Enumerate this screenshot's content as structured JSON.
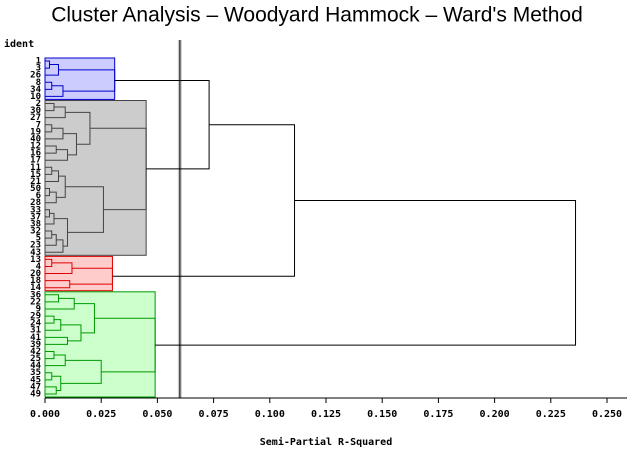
{
  "chart_data": {
    "type": "dendrogram",
    "title": "Cluster Analysis – Woodyard Hammock – Ward's Method",
    "y_label": "ident",
    "x_label": "Semi-Partial R-Squared",
    "xlim": [
      0,
      0.25
    ],
    "xticks": [
      {
        "value": 0,
        "label": "0.000"
      },
      {
        "value": 0.025,
        "label": "0.025"
      },
      {
        "value": 0.05,
        "label": "0.050"
      },
      {
        "value": 0.075,
        "label": "0.075"
      },
      {
        "value": 0.1,
        "label": "0.100"
      },
      {
        "value": 0.125,
        "label": "0.125"
      },
      {
        "value": 0.15,
        "label": "0.150"
      },
      {
        "value": 0.175,
        "label": "0.175"
      },
      {
        "value": 0.2,
        "label": "0.200"
      },
      {
        "value": 0.225,
        "label": "0.225"
      },
      {
        "value": 0.25,
        "label": "0.250"
      }
    ],
    "cutoff": 0.06,
    "leaves": [
      "1",
      "3",
      "26",
      "8",
      "34",
      "10",
      "2",
      "30",
      "27",
      "7",
      "19",
      "40",
      "12",
      "16",
      "17",
      "11",
      "15",
      "21",
      "50",
      "6",
      "28",
      "33",
      "37",
      "38",
      "32",
      "5",
      "23",
      "43",
      "13",
      "4",
      "20",
      "18",
      "14",
      "36",
      "22",
      "9",
      "29",
      "24",
      "31",
      "41",
      "39",
      "42",
      "25",
      "44",
      "35",
      "45",
      "47",
      "49"
    ],
    "merges": [
      {
        "left": 0,
        "right": 1,
        "height": 0.002
      },
      {
        "left": 48,
        "right": 2,
        "height": 0.006
      },
      {
        "left": 3,
        "right": 4,
        "height": 0.003
      },
      {
        "left": 50,
        "right": 5,
        "height": 0.008
      },
      {
        "left": 49,
        "right": 51,
        "height": 0.031
      },
      {
        "left": 6,
        "right": 7,
        "height": 0.004
      },
      {
        "left": 53,
        "right": 8,
        "height": 0.009
      },
      {
        "left": 9,
        "right": 10,
        "height": 0.003
      },
      {
        "left": 55,
        "right": 11,
        "height": 0.008
      },
      {
        "left": 12,
        "right": 13,
        "height": 0.005
      },
      {
        "left": 57,
        "right": 14,
        "height": 0.01
      },
      {
        "left": 56,
        "right": 58,
        "height": 0.014
      },
      {
        "left": 54,
        "right": 59,
        "height": 0.02
      },
      {
        "left": 15,
        "right": 16,
        "height": 0.003
      },
      {
        "left": 61,
        "right": 17,
        "height": 0.006
      },
      {
        "left": 18,
        "right": 19,
        "height": 0.002
      },
      {
        "left": 63,
        "right": 20,
        "height": 0.005
      },
      {
        "left": 62,
        "right": 64,
        "height": 0.009
      },
      {
        "left": 21,
        "right": 22,
        "height": 0.002
      },
      {
        "left": 66,
        "right": 23,
        "height": 0.004
      },
      {
        "left": 24,
        "right": 25,
        "height": 0.003
      },
      {
        "left": 68,
        "right": 26,
        "height": 0.005
      },
      {
        "left": 69,
        "right": 27,
        "height": 0.008
      },
      {
        "left": 67,
        "right": 70,
        "height": 0.01
      },
      {
        "left": 65,
        "right": 71,
        "height": 0.026
      },
      {
        "left": 60,
        "right": 72,
        "height": 0.045
      },
      {
        "left": 28,
        "right": 29,
        "height": 0.003
      },
      {
        "left": 74,
        "right": 30,
        "height": 0.012
      },
      {
        "left": 31,
        "right": 32,
        "height": 0.011
      },
      {
        "left": 75,
        "right": 76,
        "height": 0.03
      },
      {
        "left": 33,
        "right": 34,
        "height": 0.006
      },
      {
        "left": 78,
        "right": 35,
        "height": 0.013
      },
      {
        "left": 36,
        "right": 37,
        "height": 0.004
      },
      {
        "left": 80,
        "right": 38,
        "height": 0.007
      },
      {
        "left": 39,
        "right": 40,
        "height": 0.01
      },
      {
        "left": 81,
        "right": 82,
        "height": 0.016
      },
      {
        "left": 79,
        "right": 83,
        "height": 0.022
      },
      {
        "left": 41,
        "right": 42,
        "height": 0.004
      },
      {
        "left": 85,
        "right": 43,
        "height": 0.009
      },
      {
        "left": 44,
        "right": 45,
        "height": 0.003
      },
      {
        "left": 46,
        "right": 47,
        "height": 0.005
      },
      {
        "left": 87,
        "right": 88,
        "height": 0.007
      },
      {
        "left": 86,
        "right": 89,
        "height": 0.025
      },
      {
        "left": 84,
        "right": 90,
        "height": 0.049
      },
      {
        "left": 52,
        "right": 73,
        "height": 0.073
      },
      {
        "left": 92,
        "right": 77,
        "height": 0.111
      },
      {
        "left": 93,
        "right": 91,
        "height": 0.236
      }
    ],
    "clusters": [
      {
        "root": 52,
        "color": "#0000cc",
        "fill": "#ccccff"
      },
      {
        "root": 73,
        "color": "#444444",
        "fill": "#cccccc"
      },
      {
        "root": 77,
        "color": "#dd0000",
        "fill": "#ffcccc"
      },
      {
        "root": 91,
        "color": "#009900",
        "fill": "#ccffcc"
      }
    ],
    "line_color": "#000000"
  }
}
